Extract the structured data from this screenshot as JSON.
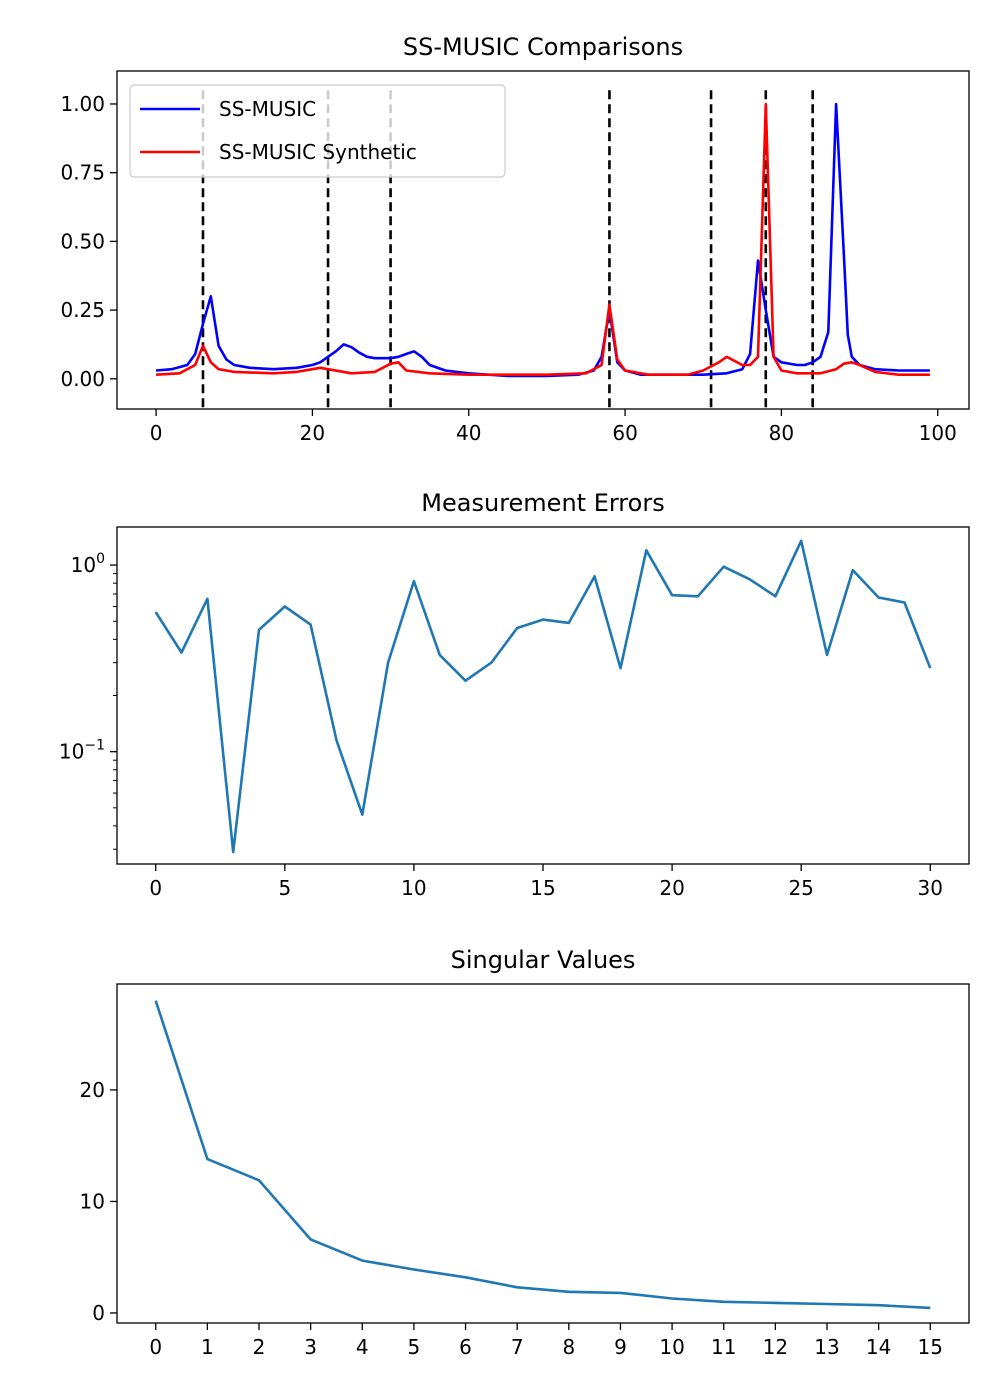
{
  "chart_data": [
    {
      "type": "line",
      "title": "SS-MUSIC Comparisons",
      "xlabel": "",
      "ylabel": "",
      "xlim": [
        -5,
        104
      ],
      "ylim": [
        -0.11,
        1.12
      ],
      "xticks": [
        0,
        20,
        40,
        60,
        80,
        100
      ],
      "yticks": [
        0.0,
        0.25,
        0.5,
        0.75,
        1.0
      ],
      "ytick_labels": [
        "0.00",
        "0.25",
        "0.50",
        "0.75",
        "1.00"
      ],
      "legend": {
        "placement": "upper-left",
        "entries": [
          "SS-MUSIC",
          "SS-MUSIC Synthetic"
        ]
      },
      "vlines": [
        6,
        22,
        30,
        58,
        71,
        78,
        84
      ],
      "vline_color": "#000000",
      "series": [
        {
          "name": "SS-MUSIC",
          "color": "#0000ff",
          "points": [
            [
              0,
              0.03
            ],
            [
              2,
              0.035
            ],
            [
              4,
              0.05
            ],
            [
              5,
              0.09
            ],
            [
              6,
              0.2
            ],
            [
              7,
              0.3
            ],
            [
              8,
              0.12
            ],
            [
              9,
              0.07
            ],
            [
              10,
              0.05
            ],
            [
              12,
              0.04
            ],
            [
              15,
              0.035
            ],
            [
              18,
              0.04
            ],
            [
              20,
              0.05
            ],
            [
              21,
              0.06
            ],
            [
              22,
              0.08
            ],
            [
              23,
              0.1
            ],
            [
              24,
              0.125
            ],
            [
              25,
              0.115
            ],
            [
              26,
              0.095
            ],
            [
              27,
              0.08
            ],
            [
              28,
              0.075
            ],
            [
              30,
              0.075
            ],
            [
              31,
              0.08
            ],
            [
              32,
              0.09
            ],
            [
              33,
              0.1
            ],
            [
              34,
              0.08
            ],
            [
              35,
              0.05
            ],
            [
              37,
              0.03
            ],
            [
              40,
              0.02
            ],
            [
              45,
              0.01
            ],
            [
              50,
              0.01
            ],
            [
              54,
              0.015
            ],
            [
              56,
              0.03
            ],
            [
              57,
              0.08
            ],
            [
              58,
              0.25
            ],
            [
              59,
              0.06
            ],
            [
              60,
              0.03
            ],
            [
              62,
              0.015
            ],
            [
              66,
              0.015
            ],
            [
              70,
              0.015
            ],
            [
              73,
              0.02
            ],
            [
              75,
              0.035
            ],
            [
              76,
              0.09
            ],
            [
              77,
              0.43
            ],
            [
              78,
              0.25
            ],
            [
              79,
              0.08
            ],
            [
              80,
              0.06
            ],
            [
              82,
              0.05
            ],
            [
              83,
              0.05
            ],
            [
              84,
              0.06
            ],
            [
              85,
              0.08
            ],
            [
              86,
              0.17
            ],
            [
              87,
              1.0
            ],
            [
              88,
              0.45
            ],
            [
              88.5,
              0.16
            ],
            [
              89,
              0.08
            ],
            [
              90,
              0.05
            ],
            [
              92,
              0.035
            ],
            [
              95,
              0.03
            ],
            [
              99,
              0.03
            ]
          ]
        },
        {
          "name": "SS-MUSIC Synthetic",
          "color": "#ff0000",
          "points": [
            [
              0,
              0.015
            ],
            [
              3,
              0.02
            ],
            [
              5,
              0.05
            ],
            [
              6,
              0.12
            ],
            [
              7,
              0.06
            ],
            [
              8,
              0.035
            ],
            [
              10,
              0.025
            ],
            [
              15,
              0.02
            ],
            [
              18,
              0.025
            ],
            [
              20,
              0.035
            ],
            [
              21,
              0.04
            ],
            [
              22,
              0.035
            ],
            [
              25,
              0.02
            ],
            [
              28,
              0.025
            ],
            [
              29,
              0.04
            ],
            [
              30,
              0.055
            ],
            [
              31,
              0.06
            ],
            [
              32,
              0.03
            ],
            [
              35,
              0.02
            ],
            [
              40,
              0.015
            ],
            [
              45,
              0.015
            ],
            [
              50,
              0.015
            ],
            [
              55,
              0.02
            ],
            [
              57,
              0.05
            ],
            [
              58,
              0.27
            ],
            [
              59,
              0.07
            ],
            [
              60,
              0.03
            ],
            [
              63,
              0.015
            ],
            [
              68,
              0.015
            ],
            [
              70,
              0.03
            ],
            [
              71,
              0.045
            ],
            [
              72,
              0.06
            ],
            [
              73,
              0.08
            ],
            [
              74,
              0.065
            ],
            [
              75,
              0.05
            ],
            [
              76,
              0.05
            ],
            [
              77,
              0.08
            ],
            [
              78,
              1.0
            ],
            [
              79,
              0.08
            ],
            [
              80,
              0.03
            ],
            [
              82,
              0.02
            ],
            [
              85,
              0.02
            ],
            [
              87,
              0.035
            ],
            [
              88,
              0.055
            ],
            [
              89,
              0.06
            ],
            [
              90,
              0.05
            ],
            [
              92,
              0.025
            ],
            [
              95,
              0.015
            ],
            [
              99,
              0.015
            ]
          ]
        }
      ]
    },
    {
      "type": "line",
      "title": "Measurement Errors",
      "xlabel": "",
      "ylabel": "",
      "yscale": "log",
      "xlim": [
        -1.5,
        31.5
      ],
      "ylim": [
        0.025,
        1.6
      ],
      "xticks": [
        0,
        5,
        10,
        15,
        20,
        25,
        30
      ],
      "series": [
        {
          "color": "#1f77b4",
          "x": [
            0,
            1,
            2,
            3,
            4,
            5,
            6,
            7,
            8,
            9,
            10,
            11,
            12,
            13,
            14,
            15,
            16,
            17,
            18,
            19,
            20,
            21,
            22,
            23,
            24,
            25,
            26,
            27,
            28,
            29,
            30
          ],
          "values": [
            0.56,
            0.34,
            0.66,
            0.029,
            0.45,
            0.6,
            0.48,
            0.115,
            0.046,
            0.3,
            0.82,
            0.33,
            0.24,
            0.3,
            0.46,
            0.51,
            0.49,
            0.87,
            0.28,
            1.2,
            0.69,
            0.68,
            0.98,
            0.84,
            0.68,
            1.35,
            0.33,
            0.94,
            0.67,
            0.63,
            0.28
          ]
        }
      ]
    },
    {
      "type": "line",
      "title": "Singular Values",
      "xlabel": "",
      "ylabel": "",
      "xlim": [
        -0.75,
        15.75
      ],
      "ylim": [
        -0.9,
        29.5
      ],
      "xticks": [
        0,
        1,
        2,
        3,
        4,
        5,
        6,
        7,
        8,
        9,
        10,
        11,
        12,
        13,
        14,
        15
      ],
      "yticks": [
        0,
        10,
        20
      ],
      "series": [
        {
          "color": "#1f77b4",
          "x": [
            0,
            1,
            2,
            3,
            4,
            5,
            6,
            7,
            8,
            9,
            10,
            11,
            12,
            13,
            14,
            15
          ],
          "values": [
            28.0,
            13.8,
            11.9,
            6.6,
            4.7,
            3.9,
            3.2,
            2.3,
            1.9,
            1.8,
            1.3,
            1.0,
            0.9,
            0.8,
            0.7,
            0.45
          ]
        }
      ]
    }
  ]
}
